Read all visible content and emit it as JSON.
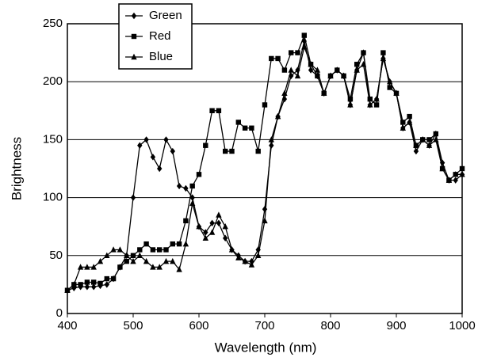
{
  "chart_data": {
    "type": "line",
    "x_label": "Wavelength (nm)",
    "y_label": "Brightness",
    "x": [
      400,
      410,
      420,
      430,
      440,
      450,
      460,
      470,
      480,
      490,
      500,
      510,
      520,
      530,
      540,
      550,
      560,
      570,
      580,
      590,
      600,
      610,
      620,
      630,
      640,
      650,
      660,
      670,
      680,
      690,
      700,
      710,
      720,
      730,
      740,
      750,
      760,
      770,
      780,
      790,
      800,
      810,
      820,
      830,
      840,
      850,
      860,
      870,
      880,
      890,
      900,
      910,
      920,
      930,
      940,
      950,
      960,
      970,
      980,
      990,
      1000
    ],
    "series": [
      {
        "name": "Green",
        "color": "#000000",
        "marker": "diamond",
        "values": [
          20,
          22,
          23,
          23,
          23,
          24,
          25,
          30,
          40,
          50,
          100,
          145,
          150,
          135,
          125,
          150,
          140,
          110,
          108,
          100,
          75,
          70,
          78,
          78,
          65,
          55,
          50,
          45,
          45,
          55,
          90,
          145,
          170,
          185,
          205,
          210,
          235,
          210,
          205,
          190,
          205,
          210,
          205,
          180,
          210,
          225,
          180,
          185,
          220,
          200,
          190,
          160,
          165,
          140,
          150,
          145,
          155,
          130,
          115,
          115,
          120
        ]
      },
      {
        "name": "Red",
        "color": "#000000",
        "marker": "square",
        "values": [
          20,
          25,
          25,
          27,
          27,
          26,
          30,
          30,
          40,
          45,
          50,
          55,
          60,
          55,
          55,
          55,
          60,
          60,
          80,
          110,
          120,
          145,
          175,
          175,
          140,
          140,
          165,
          160,
          160,
          140,
          180,
          220,
          220,
          210,
          225,
          225,
          240,
          215,
          205,
          190,
          205,
          210,
          205,
          185,
          215,
          225,
          185,
          180,
          225,
          195,
          190,
          165,
          170,
          145,
          150,
          150,
          155,
          125,
          115,
          120,
          125
        ]
      },
      {
        "name": "Blue",
        "color": "#000000",
        "marker": "triangle",
        "values": [
          20,
          25,
          40,
          40,
          40,
          45,
          50,
          55,
          55,
          50,
          45,
          50,
          45,
          40,
          40,
          45,
          45,
          38,
          60,
          95,
          75,
          65,
          70,
          85,
          75,
          55,
          48,
          45,
          42,
          50,
          80,
          150,
          170,
          190,
          210,
          205,
          230,
          215,
          210,
          190,
          205,
          210,
          205,
          180,
          210,
          215,
          180,
          185,
          220,
          200,
          190,
          160,
          165,
          145,
          150,
          145,
          150,
          125,
          115,
          120,
          120
        ]
      }
    ],
    "xlim": [
      400,
      1000
    ],
    "xticks": [
      400,
      500,
      600,
      700,
      800,
      900,
      1000
    ],
    "ylim": [
      0,
      250
    ],
    "yticks": [
      0,
      50,
      100,
      150,
      200,
      250
    ],
    "grid": true,
    "legend": "top-left"
  }
}
